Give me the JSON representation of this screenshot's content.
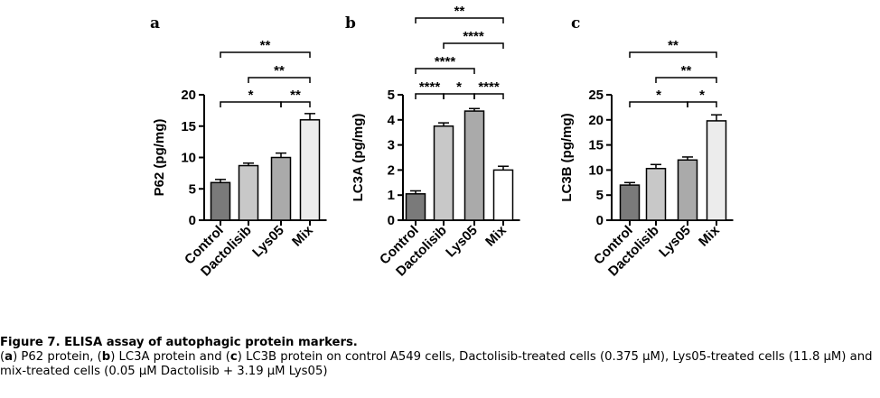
{
  "chart_data": [
    {
      "panel": "a",
      "type": "bar",
      "categories": [
        "Control",
        "Dactolisib",
        "Lys05",
        "Mix"
      ],
      "values": [
        6.0,
        8.7,
        10.0,
        16.0
      ],
      "errors": [
        0.5,
        0.4,
        0.7,
        1.0
      ],
      "ylabel": "P62 (pg/mg)",
      "ylim": [
        0,
        20
      ],
      "yticks": [
        0,
        5,
        10,
        15,
        20
      ],
      "bar_colors": [
        "#7a7a7a",
        "#c8c8c8",
        "#aaaaaa",
        "#ececec"
      ],
      "significance": [
        {
          "from": 0,
          "to": 3,
          "label": "**"
        },
        {
          "from": 1,
          "to": 3,
          "label": "**"
        },
        {
          "from": 0,
          "to": 2,
          "label": "*"
        },
        {
          "from": 2,
          "to": 3,
          "label": "**"
        }
      ]
    },
    {
      "panel": "b",
      "type": "bar",
      "categories": [
        "Control",
        "Dactolisib",
        "Lys05",
        "Mix"
      ],
      "values": [
        1.05,
        3.75,
        4.35,
        2.0
      ],
      "errors": [
        0.12,
        0.13,
        0.1,
        0.15
      ],
      "ylabel": "LC3A (pg/mg)",
      "ylim": [
        0,
        5
      ],
      "yticks": [
        0,
        1,
        2,
        3,
        4,
        5
      ],
      "bar_colors": [
        "#7a7a7a",
        "#c8c8c8",
        "#aaaaaa",
        "#ffffff"
      ],
      "significance": [
        {
          "from": 0,
          "to": 3,
          "label": "**"
        },
        {
          "from": 1,
          "to": 3,
          "label": "****"
        },
        {
          "from": 0,
          "to": 2,
          "label": "****"
        },
        {
          "from": 0,
          "to": 1,
          "label": "****"
        },
        {
          "from": 1,
          "to": 2,
          "label": "*"
        },
        {
          "from": 2,
          "to": 3,
          "label": "****"
        }
      ]
    },
    {
      "panel": "c",
      "type": "bar",
      "categories": [
        "Control",
        "Dactolisib",
        "Lys05",
        "Mix"
      ],
      "values": [
        7.0,
        10.3,
        12.0,
        19.8
      ],
      "errors": [
        0.5,
        0.8,
        0.6,
        1.2
      ],
      "ylabel": "LC3B (pg/mg)",
      "ylim": [
        0,
        25
      ],
      "yticks": [
        0,
        5,
        10,
        15,
        20,
        25
      ],
      "bar_colors": [
        "#7a7a7a",
        "#c8c8c8",
        "#aaaaaa",
        "#ececec"
      ],
      "significance": [
        {
          "from": 0,
          "to": 3,
          "label": "**"
        },
        {
          "from": 1,
          "to": 3,
          "label": "**"
        },
        {
          "from": 0,
          "to": 2,
          "label": "*"
        },
        {
          "from": 2,
          "to": 3,
          "label": "*"
        }
      ]
    }
  ],
  "caption": {
    "title": "Figure 7. ELISA assay of autophagic protein markers.",
    "parts": [
      {
        "b": "a",
        "t": ") P62 protein, ("
      },
      {
        "b": "b",
        "t": ") LC3A protein and ("
      },
      {
        "b": "c",
        "t": ") LC3B protein on control A549 cells, Dactolisib-treated cells (0.375 μM), Lys05-treated cells (11.8 μM) and mix-treated cells (0.05 μM Dactolisib + 3.19 μM Lys05)"
      }
    ]
  }
}
